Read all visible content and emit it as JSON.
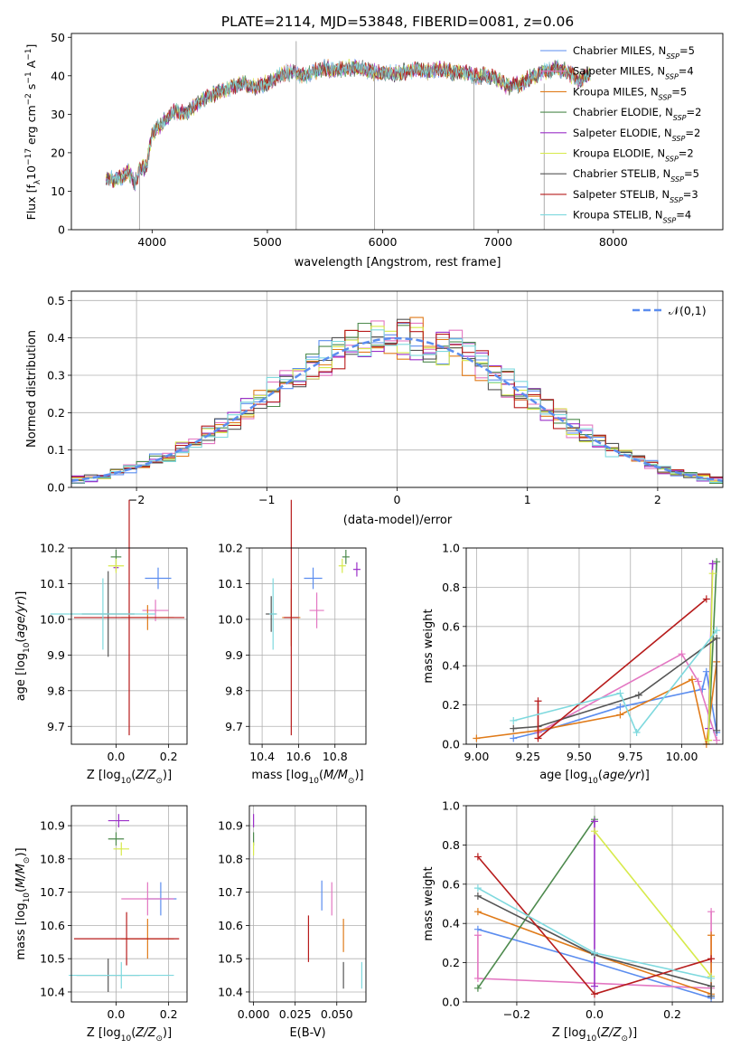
{
  "title": "PLATE=2114, MJD=53848, FIBERID=0081, z=0.06",
  "colors": {
    "Chabrier MILES": "#5b8def",
    "Salpeter MILES": "#e377c2",
    "Kroupa MILES": "#e07b1a",
    "Chabrier ELODIE": "#4d8a4d",
    "Salpeter ELODIE": "#9b30c8",
    "Kroupa ELODIE": "#d7ea4b",
    "Chabrier STELIB": "#555555",
    "Salpeter STELIB": "#b71c1c",
    "Kroupa STELIB": "#7fd9de"
  },
  "chart_data": [
    {
      "type": "line",
      "id": "spectrum",
      "xlabel": "wavelength [Angstrom, rest frame]",
      "ylabel": "Flux [f$_\\lambda$10$^{-17}$ erg cm$^{-2}$ s$^{-1}$ A$^{-1}$]",
      "xlim": [
        3300,
        8950
      ],
      "ylim": [
        0,
        51
      ],
      "xticks": [
        4000,
        5000,
        6000,
        7000,
        8000
      ],
      "yticks": [
        0,
        10,
        20,
        30,
        40,
        50
      ],
      "legend_position": "top-right",
      "legend": [
        {
          "name": "Chabrier MILES",
          "nssp": "5"
        },
        {
          "name": "Salpeter MILES",
          "nssp": "4"
        },
        {
          "name": "Kroupa MILES",
          "nssp": "5"
        },
        {
          "name": "Chabrier ELODIE",
          "nssp": "2"
        },
        {
          "name": "Salpeter ELODIE",
          "nssp": "2"
        },
        {
          "name": "Kroupa ELODIE",
          "nssp": "2"
        },
        {
          "name": "Chabrier STELIB",
          "nssp": "5"
        },
        {
          "name": "Salpeter STELIB",
          "nssp": "3"
        },
        {
          "name": "Kroupa STELIB",
          "nssp": "4"
        }
      ],
      "continuum": [
        [
          3600,
          13
        ],
        [
          3700,
          13
        ],
        [
          3800,
          15
        ],
        [
          3850,
          12
        ],
        [
          3900,
          16
        ],
        [
          3950,
          16
        ],
        [
          4000,
          25
        ],
        [
          4100,
          28
        ],
        [
          4200,
          31
        ],
        [
          4300,
          30
        ],
        [
          4400,
          33
        ],
        [
          4500,
          35
        ],
        [
          4600,
          36
        ],
        [
          4700,
          37
        ],
        [
          4800,
          38
        ],
        [
          4900,
          37
        ],
        [
          5000,
          38
        ],
        [
          5100,
          40
        ],
        [
          5200,
          41
        ],
        [
          5300,
          40
        ],
        [
          5400,
          41
        ],
        [
          5500,
          42
        ],
        [
          5600,
          41.5
        ],
        [
          5700,
          42
        ],
        [
          5800,
          42
        ],
        [
          5900,
          41
        ],
        [
          6000,
          41
        ],
        [
          6100,
          40.5
        ],
        [
          6200,
          41
        ],
        [
          6300,
          41.5
        ],
        [
          6400,
          41
        ],
        [
          6500,
          42
        ],
        [
          6600,
          41
        ],
        [
          6700,
          41
        ],
        [
          6800,
          40
        ],
        [
          6900,
          40
        ],
        [
          7000,
          39
        ],
        [
          7100,
          37
        ],
        [
          7200,
          38
        ],
        [
          7300,
          40
        ],
        [
          7400,
          41
        ],
        [
          7500,
          42
        ],
        [
          7600,
          41
        ],
        [
          7700,
          39
        ],
        [
          7800,
          40
        ]
      ]
    },
    {
      "type": "step",
      "id": "residual-histogram",
      "xlabel": "(data-model)/error",
      "ylabel": "Normed distribution",
      "xlim": [
        -2.5,
        2.5
      ],
      "ylim": [
        0,
        0.525
      ],
      "xticks": [
        -2,
        -1,
        0,
        1,
        2
      ],
      "yticks": [
        0.0,
        0.1,
        0.2,
        0.3,
        0.4,
        0.5
      ],
      "legend": "$\\mathcal{N}(0,1)$"
    },
    {
      "type": "scatter",
      "id": "Z-vs-age",
      "xlabel": "Z [log$_{10}$($Z/Z_\\odot$)]",
      "ylabel": "age  [log$_{10}$($age/yr$)]",
      "xlim": [
        -0.17,
        0.27
      ],
      "ylim": [
        9.65,
        10.2
      ],
      "xticks": [
        0.0,
        0.2
      ],
      "yticks": [
        9.7,
        9.8,
        9.9,
        10.0,
        10.1,
        10.2
      ],
      "points": [
        {
          "model": "Chabrier MILES",
          "x": 0.16,
          "y": 10.115,
          "xerr": 0.05,
          "yerr": 0.03
        },
        {
          "model": "Salpeter MILES",
          "x": 0.15,
          "y": 10.025,
          "xerr": 0.05,
          "yerr": 0.03
        },
        {
          "model": "Kroupa MILES",
          "x": 0.12,
          "y": 10.005,
          "xerr": 0.1,
          "yerr": 0.035
        },
        {
          "model": "Chabrier ELODIE",
          "x": 0.0,
          "y": 10.175,
          "xerr": 0.02,
          "yerr": 0.02
        },
        {
          "model": "Salpeter ELODIE",
          "x": 0.0,
          "y": 10.145,
          "xerr": 0.01,
          "yerr": 0.01
        },
        {
          "model": "Kroupa ELODIE",
          "x": 0.0,
          "y": 10.15,
          "xerr": 0.03,
          "yerr": 0.02
        },
        {
          "model": "Chabrier STELIB",
          "x": -0.03,
          "y": 10.015,
          "xerr": 0.1,
          "yerr": 0.12
        },
        {
          "model": "Salpeter STELIB",
          "x": 0.05,
          "y": 10.005,
          "xerr": 0.21,
          "yerr": 0.33
        },
        {
          "model": "Kroupa STELIB",
          "x": -0.05,
          "y": 10.015,
          "xerr": 0.2,
          "yerr": 0.1
        }
      ]
    },
    {
      "type": "scatter",
      "id": "mass-vs-age",
      "xlabel": "mass [log$_{10}$($M/M_\\odot$)]",
      "ylabel": "",
      "xlim": [
        10.33,
        10.97
      ],
      "ylim": [
        9.65,
        10.2
      ],
      "xticks": [
        10.4,
        10.6,
        10.8
      ],
      "yticks": [
        9.7,
        9.8,
        9.9,
        10.0,
        10.1,
        10.2
      ],
      "points": [
        {
          "model": "Chabrier MILES",
          "x": 10.68,
          "y": 10.115,
          "xerr": 0.05,
          "yerr": 0.03
        },
        {
          "model": "Salpeter MILES",
          "x": 10.7,
          "y": 10.025,
          "xerr": 0.04,
          "yerr": 0.05
        },
        {
          "model": "Kroupa MILES",
          "x": 10.56,
          "y": 10.005,
          "xerr": 0.05,
          "yerr": 0.08
        },
        {
          "model": "Chabrier ELODIE",
          "x": 10.86,
          "y": 10.175,
          "xerr": 0.02,
          "yerr": 0.02
        },
        {
          "model": "Salpeter ELODIE",
          "x": 10.92,
          "y": 10.14,
          "xerr": 0.02,
          "yerr": 0.02
        },
        {
          "model": "Kroupa ELODIE",
          "x": 10.84,
          "y": 10.15,
          "xerr": 0.02,
          "yerr": 0.02
        },
        {
          "model": "Chabrier STELIB",
          "x": 10.45,
          "y": 10.015,
          "xerr": 0.03,
          "yerr": 0.05
        },
        {
          "model": "Salpeter STELIB",
          "x": 10.56,
          "y": 10.005,
          "xerr": 0.04,
          "yerr": 0.33
        },
        {
          "model": "Kroupa STELIB",
          "x": 10.46,
          "y": 10.015,
          "xerr": 0.02,
          "yerr": 0.1
        }
      ]
    },
    {
      "type": "line",
      "id": "age-vs-mass-weight",
      "xlabel": "age  [log$_{10}$($age/yr$)]",
      "ylabel": "mass weight",
      "xlim": [
        8.95,
        10.2
      ],
      "ylim": [
        0,
        1.0
      ],
      "xticks": [
        9.0,
        9.25,
        9.5,
        9.75,
        10.0
      ],
      "xticklabels": [
        "9.00",
        "9.25",
        "9.50",
        "9.75",
        "10.00"
      ],
      "yticks": [
        0.0,
        0.2,
        0.4,
        0.6,
        0.8,
        1.0
      ],
      "series": [
        {
          "name": "Chabrier MILES",
          "points": [
            [
              9.18,
              0.03
            ],
            [
              9.3,
              0.06
            ],
            [
              9.7,
              0.19
            ],
            [
              10.1,
              0.28
            ],
            [
              10.12,
              0.37
            ],
            [
              10.17,
              0.06
            ]
          ]
        },
        {
          "name": "Salpeter MILES",
          "points": [
            [
              9.3,
              0.06
            ],
            [
              10.0,
              0.46
            ],
            [
              10.08,
              0.32
            ],
            [
              10.17,
              0.02
            ]
          ]
        },
        {
          "name": "Kroupa MILES",
          "points": [
            [
              9.0,
              0.03
            ],
            [
              9.3,
              0.07
            ],
            [
              9.7,
              0.15
            ],
            [
              10.05,
              0.33
            ],
            [
              10.12,
              0.0
            ],
            [
              10.17,
              0.42
            ]
          ]
        },
        {
          "name": "Chabrier ELODIE",
          "points": [
            [
              10.13,
              0.02
            ],
            [
              10.17,
              0.93
            ]
          ]
        },
        {
          "name": "Salpeter ELODIE",
          "points": [
            [
              10.13,
              0.08
            ],
            [
              10.15,
              0.92
            ]
          ]
        },
        {
          "name": "Kroupa ELODIE",
          "points": [
            [
              10.13,
              0.02
            ],
            [
              10.15,
              0.87
            ]
          ]
        },
        {
          "name": "Chabrier STELIB",
          "points": [
            [
              9.18,
              0.08
            ],
            [
              9.3,
              0.09
            ],
            [
              9.79,
              0.25
            ],
            [
              10.17,
              0.54
            ],
            [
              10.17,
              0.07
            ]
          ]
        },
        {
          "name": "Salpeter STELIB",
          "points": [
            [
              9.3,
              0.22
            ],
            [
              9.3,
              0.03
            ],
            [
              10.12,
              0.74
            ]
          ]
        },
        {
          "name": "Kroupa STELIB",
          "points": [
            [
              9.18,
              0.12
            ],
            [
              9.7,
              0.26
            ],
            [
              9.78,
              0.06
            ],
            [
              10.17,
              0.58
            ]
          ]
        }
      ]
    },
    {
      "type": "scatter",
      "id": "Z-vs-mass",
      "xlabel": "Z [log$_{10}$($Z/Z_\\odot$)]",
      "ylabel": "mass [log$_{10}$($M/M_\\odot$)]",
      "xlim": [
        -0.17,
        0.27
      ],
      "ylim": [
        10.37,
        10.96
      ],
      "xticks": [
        0.0,
        0.2
      ],
      "yticks": [
        10.4,
        10.5,
        10.6,
        10.7,
        10.8,
        10.9
      ],
      "points": [
        {
          "model": "Chabrier MILES",
          "x": 0.17,
          "y": 10.68,
          "xerr": 0.06,
          "yerr": 0.05
        },
        {
          "model": "Salpeter MILES",
          "x": 0.12,
          "y": 10.68,
          "xerr": 0.1,
          "yerr": 0.05
        },
        {
          "model": "Kroupa MILES",
          "x": 0.12,
          "y": 10.56,
          "xerr": 0.1,
          "yerr": 0.06
        },
        {
          "model": "Chabrier ELODIE",
          "x": 0.0,
          "y": 10.86,
          "xerr": 0.03,
          "yerr": 0.02
        },
        {
          "model": "Salpeter ELODIE",
          "x": 0.01,
          "y": 10.915,
          "xerr": 0.04,
          "yerr": 0.02
        },
        {
          "model": "Kroupa ELODIE",
          "x": 0.02,
          "y": 10.83,
          "xerr": 0.03,
          "yerr": 0.02
        },
        {
          "model": "Chabrier STELIB",
          "x": -0.03,
          "y": 10.45,
          "xerr": 0.12,
          "yerr": 0.05
        },
        {
          "model": "Salpeter STELIB",
          "x": 0.04,
          "y": 10.56,
          "xerr": 0.2,
          "yerr": 0.08
        },
        {
          "model": "Kroupa STELIB",
          "x": 0.02,
          "y": 10.45,
          "xerr": 0.2,
          "yerr": 0.04
        }
      ]
    },
    {
      "type": "scatter",
      "id": "EBV-vs-mass",
      "xlabel": "E(B-V)",
      "ylabel": "",
      "xlim": [
        -0.0025,
        0.0675
      ],
      "ylim": [
        10.37,
        10.96
      ],
      "xticks": [
        0.0,
        0.025,
        0.05
      ],
      "xticklabels": [
        "0.000",
        "0.025",
        "0.050"
      ],
      "yticks": [
        10.4,
        10.5,
        10.6,
        10.7,
        10.8,
        10.9
      ],
      "points": [
        {
          "model": "Chabrier MILES",
          "x": 0.041,
          "y": 10.69,
          "yerr": 0.045
        },
        {
          "model": "Salpeter MILES",
          "x": 0.047,
          "y": 10.68,
          "yerr": 0.05
        },
        {
          "model": "Kroupa MILES",
          "x": 0.054,
          "y": 10.57,
          "yerr": 0.05
        },
        {
          "model": "Chabrier ELODIE",
          "x": 0.0,
          "y": 10.86,
          "yerr": 0.02
        },
        {
          "model": "Salpeter ELODIE",
          "x": 0.0,
          "y": 10.915,
          "yerr": 0.02
        },
        {
          "model": "Kroupa ELODIE",
          "x": 0.0,
          "y": 10.83,
          "yerr": 0.02
        },
        {
          "model": "Chabrier STELIB",
          "x": 0.054,
          "y": 10.45,
          "yerr": 0.04
        },
        {
          "model": "Salpeter STELIB",
          "x": 0.033,
          "y": 10.56,
          "yerr": 0.07
        },
        {
          "model": "Kroupa STELIB",
          "x": 0.065,
          "y": 10.45,
          "yerr": 0.04
        }
      ]
    },
    {
      "type": "line",
      "id": "Z-vs-mass-weight",
      "xlabel": "Z [log$_{10}$($Z/Z_\\odot$)]",
      "ylabel": "mass weight",
      "xlim": [
        -0.33,
        0.33
      ],
      "ylim": [
        0,
        1.0
      ],
      "xticks": [
        -0.2,
        0.0,
        0.2
      ],
      "xticklabels": [
        "−0.2",
        "0.0",
        "0.2"
      ],
      "yticks": [
        0.0,
        0.2,
        0.4,
        0.6,
        0.8,
        1.0
      ],
      "series": [
        {
          "name": "Chabrier MILES",
          "points": [
            [
              -0.3,
              0.37
            ],
            [
              0.0,
              0.2
            ],
            [
              0.3,
              0.02
            ]
          ]
        },
        {
          "name": "Salpeter MILES",
          "points": [
            [
              -0.3,
              0.34
            ],
            [
              -0.3,
              0.12
            ],
            [
              0.3,
              0.07
            ],
            [
              0.3,
              0.46
            ]
          ]
        },
        {
          "name": "Kroupa MILES",
          "points": [
            [
              -0.3,
              0.46
            ],
            [
              0.0,
              0.24
            ],
            [
              0.3,
              0.04
            ],
            [
              0.3,
              0.34
            ]
          ]
        },
        {
          "name": "Chabrier ELODIE",
          "points": [
            [
              -0.3,
              0.07
            ],
            [
              0.0,
              0.93
            ]
          ]
        },
        {
          "name": "Salpeter ELODIE",
          "points": [
            [
              0.0,
              0.92
            ],
            [
              0.0,
              0.08
            ]
          ]
        },
        {
          "name": "Kroupa ELODIE",
          "points": [
            [
              0.0,
              0.87
            ],
            [
              0.3,
              0.13
            ]
          ]
        },
        {
          "name": "Chabrier STELIB",
          "points": [
            [
              -0.3,
              0.54
            ],
            [
              0.0,
              0.24
            ],
            [
              0.3,
              0.08
            ],
            [
              0.3,
              0.03
            ]
          ]
        },
        {
          "name": "Salpeter STELIB",
          "points": [
            [
              -0.3,
              0.74
            ],
            [
              0.0,
              0.04
            ],
            [
              0.3,
              0.22
            ]
          ]
        },
        {
          "name": "Kroupa STELIB",
          "points": [
            [
              -0.3,
              0.58
            ],
            [
              0.0,
              0.25
            ],
            [
              0.3,
              0.12
            ]
          ]
        }
      ]
    }
  ]
}
